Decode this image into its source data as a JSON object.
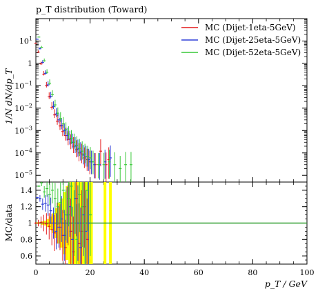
{
  "chart_data": [
    {
      "panel": "main",
      "type": "scatter",
      "title": "p_T distribution (Toward)",
      "xlabel": "p_T / GeV",
      "ylabel": "1/N dN/dp_T",
      "xlim": [
        0,
        100
      ],
      "yscale": "log",
      "ylim": [
        5e-06,
        100
      ],
      "yticks": [
        "10^{-5}",
        "10^{-4}",
        "10^{-3}",
        "10^{-2}",
        "10^{-1}",
        "1",
        "10^{1}"
      ],
      "xticks": [
        "0",
        "20",
        "40",
        "60",
        "80",
        "100"
      ],
      "legend_position": "top-right",
      "series": [
        {
          "name": "MC (Dijet-1eta-5GeV)",
          "color": "#e41a1c",
          "x": [
            0.5,
            1.5,
            2.5,
            3.5,
            4.5,
            5.5,
            6.5,
            7.5,
            8.5,
            9.5,
            10.5,
            11.5,
            12.5,
            13.5,
            14.5,
            15.5,
            16.5,
            17.5,
            18.5,
            19.5,
            20.5,
            22.5,
            24.5,
            26.5,
            27.5
          ],
          "y": [
            8,
            3.2,
            0.95,
            0.33,
            0.1,
            0.032,
            0.011,
            0.005,
            0.0026,
            0.0016,
            0.0009,
            0.0006,
            0.0004,
            0.00028,
            0.0002,
            0.00014,
            0.0001,
            9e-05,
            6e-05,
            5e-05,
            4e-05,
            3e-05,
            0.00012,
            3e-05,
            5e-05
          ]
        },
        {
          "name": "MC (Dijet-25eta-5GeV)",
          "color": "#2f3fd8",
          "x": [
            0.5,
            1.5,
            2.5,
            3.5,
            4.5,
            5.5,
            6.5,
            7.5,
            8.5,
            9.5,
            10.5,
            11.5,
            12.5,
            13.5,
            14.5,
            15.5,
            16.5,
            17.5,
            18.5,
            19.5,
            20.5,
            21.5,
            23.5,
            25.5,
            27.5
          ],
          "y": [
            12,
            4.5,
            1.1,
            0.36,
            0.11,
            0.034,
            0.012,
            0.0055,
            0.003,
            0.0017,
            0.001,
            0.0006,
            0.00042,
            0.0003,
            0.0002,
            0.00015,
            0.00011,
            8e-05,
            7e-05,
            5e-05,
            4e-05,
            3e-05,
            3e-05,
            4e-05,
            6e-05
          ]
        },
        {
          "name": "MC (Dijet-52eta-5GeV)",
          "color": "#39c939",
          "x": [
            0.5,
            1.5,
            2.5,
            3.5,
            4.5,
            5.5,
            6.5,
            7.5,
            8.5,
            9.5,
            10.5,
            11.5,
            12.5,
            13.5,
            14.5,
            15.5,
            16.5,
            17.5,
            18.5,
            19.5,
            20.5,
            22.5,
            24.5,
            26.5,
            28.5,
            30.5,
            32.5,
            34.5
          ],
          "y": [
            15,
            5.2,
            1.3,
            0.4,
            0.13,
            0.04,
            0.014,
            0.006,
            0.0035,
            0.002,
            0.0011,
            0.0007,
            0.00045,
            0.0003,
            0.00022,
            0.00016,
            0.00012,
            9e-05,
            7e-05,
            6e-05,
            4e-05,
            3e-05,
            3e-05,
            4e-05,
            3e-05,
            2e-05,
            3e-05,
            3e-05
          ]
        }
      ]
    },
    {
      "panel": "ratio",
      "type": "scatter",
      "xlabel": "p_T / GeV",
      "ylabel": "MC/data",
      "xlim": [
        0,
        100
      ],
      "ylim": [
        0.5,
        1.5
      ],
      "yticks": [
        "0.6",
        "0.8",
        "1",
        "1.2",
        "1.4"
      ],
      "reference_line": 1,
      "reference_color": "#2e9e2e",
      "uncertainty_band_color": "#ffff00",
      "band_x": [
        0,
        1,
        2,
        3,
        4,
        5,
        6,
        7,
        8,
        9,
        10,
        11,
        12,
        13,
        14,
        15,
        16,
        17,
        18,
        19,
        20,
        21,
        22,
        23,
        24,
        25,
        26,
        27,
        28
      ],
      "band_halfwidth": [
        0.01,
        0.01,
        0.02,
        0.03,
        0.05,
        0.08,
        0.12,
        0.18,
        0.25,
        0.3,
        0.38,
        0.45,
        0.5,
        0.5,
        0.5,
        0.5,
        0.5,
        0.5,
        0.5,
        0.5,
        0.5,
        0,
        0,
        0,
        0,
        0.5,
        0,
        0.5,
        0.5
      ],
      "series": [
        {
          "name": "MC (Dijet-1eta-5GeV)",
          "color": "#e41a1c",
          "x": [
            0.5,
            1.5,
            2.5,
            3.5,
            4.5,
            5.5,
            6.5,
            7.5,
            8.5,
            9.5,
            10.5,
            11.5,
            12.5,
            13.5,
            14.5,
            15.5,
            16.5,
            17.5,
            18.5,
            19.5
          ],
          "y": [
            1.0,
            1.0,
            1.01,
            1.0,
            0.99,
            0.96,
            0.92,
            0.88,
            1.0,
            0.95,
            0.85,
            0.7,
            1.1,
            0.9,
            0.65,
            1.3,
            0.75,
            0.9,
            1.2,
            0.8
          ]
        },
        {
          "name": "MC (Dijet-25eta-5GeV)",
          "color": "#2f3fd8",
          "x": [
            0.5,
            1.5,
            2.5,
            3.5,
            4.5,
            5.5,
            6.5,
            7.5,
            8.5,
            9.5,
            10.5,
            11.5,
            12.5,
            13.5,
            14.5,
            15.5,
            16.5,
            17.5,
            18.5,
            19.5
          ],
          "y": [
            1.31,
            1.3,
            1.23,
            1.24,
            1.22,
            1.15,
            1.0,
            0.9,
            0.95,
            1.05,
            0.85,
            1.1,
            1.2,
            0.8,
            1.3,
            1.0,
            0.7,
            1.1,
            0.9,
            1.0
          ]
        },
        {
          "name": "MC (Dijet-52eta-5GeV)",
          "color": "#39c939",
          "x": [
            0.5,
            1.5,
            2.5,
            3.5,
            4.5,
            5.5,
            6.5,
            7.5,
            8.5,
            9.5,
            10.5,
            11.5,
            12.5,
            13.5,
            14.5,
            15.5,
            16.5,
            17.5,
            18.5,
            19.5
          ],
          "y": [
            1.45,
            1.49,
            1.38,
            1.42,
            1.35,
            1.4,
            1.3,
            1.2,
            1.25,
            1.4,
            1.1,
            1.3,
            1.45,
            1.0,
            0.8,
            1.35,
            1.2,
            1.0,
            1.4,
            1.1
          ]
        }
      ]
    }
  ]
}
